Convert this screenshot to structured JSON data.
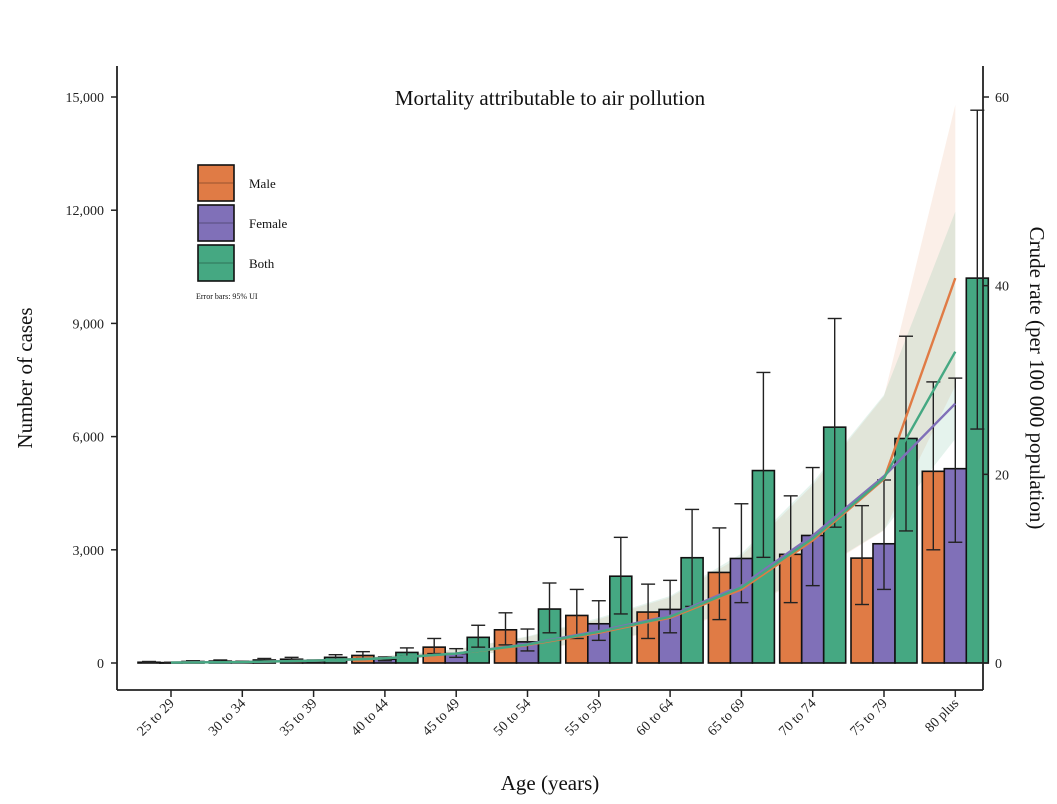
{
  "chart_data": {
    "type": "bar",
    "title": "Mortality attributable to air pollution",
    "xlabel": "Age (years)",
    "ylabel": "Number of cases",
    "y2label": "Crude rate (per 100 000 population)",
    "categories": [
      "25 to 29",
      "30 to 34",
      "35 to 39",
      "40 to 44",
      "45 to 49",
      "50 to 54",
      "55 to 59",
      "60 to 64",
      "65 to 69",
      "70 to 74",
      "75 to 79",
      "80 plus"
    ],
    "ylim": [
      0,
      15000
    ],
    "y2lim": [
      0,
      60
    ],
    "yticks": [
      0,
      3000,
      6000,
      9000,
      12000,
      15000
    ],
    "yticklabels": [
      "0",
      "3,000",
      "6,000",
      "9,000",
      "12,000",
      "15,000"
    ],
    "y2ticks": [
      0,
      20,
      40,
      60
    ],
    "y2ticklabels": [
      "0",
      "20",
      "40",
      "60"
    ],
    "legend_position": "top-left",
    "legend_note": "Error bars: 95% UI",
    "series": [
      {
        "name": "Male",
        "color": "#e07b45",
        "values": [
          20,
          50,
          100,
          200,
          420,
          880,
          1260,
          1350,
          2400,
          2880,
          2780,
          5080
        ],
        "lower": [
          10,
          30,
          60,
          120,
          250,
          480,
          650,
          650,
          1150,
          1600,
          1550,
          3000
        ],
        "upper": [
          40,
          80,
          150,
          300,
          650,
          1330,
          1950,
          2090,
          3580,
          4430,
          4170,
          7450
        ],
        "rate": [
          0.05,
          0.1,
          0.25,
          0.5,
          1.0,
          1.9,
          3.2,
          4.8,
          7.8,
          13.0,
          19.5,
          40.8
        ]
      },
      {
        "name": "Female",
        "color": "#8070b8",
        "values": [
          10,
          30,
          50,
          100,
          250,
          560,
          1040,
          1420,
          2770,
          3380,
          3160,
          5150
        ],
        "lower": [
          5,
          15,
          30,
          60,
          150,
          320,
          600,
          800,
          1600,
          2050,
          1950,
          3200
        ],
        "upper": [
          20,
          50,
          80,
          160,
          380,
          900,
          1650,
          2190,
          4220,
          5180,
          4850,
          7550
        ],
        "rate": [
          0.05,
          0.1,
          0.25,
          0.5,
          1.0,
          2.0,
          3.4,
          5.0,
          8.2,
          13.5,
          19.8,
          27.5
        ]
      },
      {
        "name": "Both",
        "color": "#45a882",
        "values": [
          40,
          80,
          150,
          280,
          680,
          1430,
          2300,
          2790,
          5100,
          6250,
          5950,
          10200
        ],
        "lower": [
          20,
          50,
          90,
          170,
          420,
          800,
          1300,
          1500,
          2800,
          3600,
          3500,
          6200
        ],
        "upper": [
          60,
          120,
          220,
          400,
          1000,
          2120,
          3330,
          4070,
          7700,
          9130,
          8660,
          14650
        ],
        "rate": [
          0.05,
          0.1,
          0.25,
          0.5,
          1.0,
          1.95,
          3.3,
          4.9,
          8.0,
          13.2,
          19.6,
          33.0
        ]
      }
    ]
  }
}
